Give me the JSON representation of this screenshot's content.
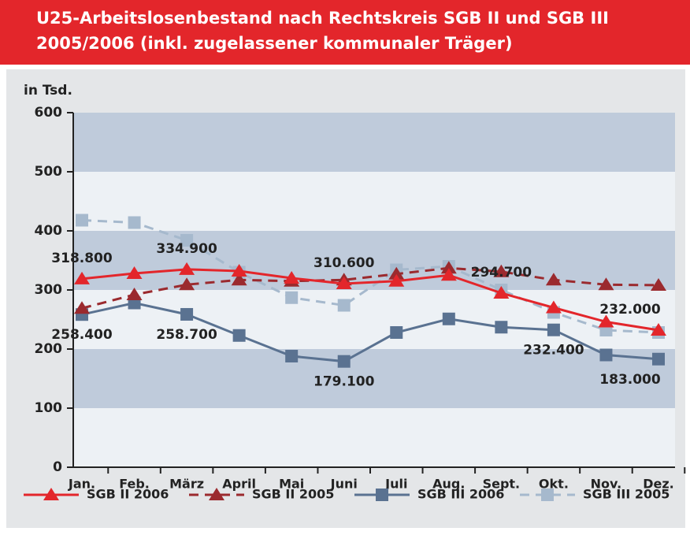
{
  "chart_data": {
    "type": "line",
    "title": "U25-Arbeitslosenbestand nach Rechtskreis SGB II und SGB III",
    "subtitle": "2005/2006 (inkl. zugelassener kommunaler Träger)",
    "y_label": "in Tsd.",
    "categories": [
      "Jan.",
      "Feb.",
      "März",
      "April",
      "Mai",
      "Juni",
      "Juli",
      "Aug.",
      "Sept.",
      "Okt.",
      "Nov.",
      "Dez."
    ],
    "series": [
      {
        "name": "SGB II 2006",
        "color": "#e3262b",
        "dashed": false,
        "marker": "triangle",
        "values": [
          318.8,
          328,
          334.9,
          332,
          320,
          310.6,
          315,
          325,
          294.7,
          270,
          246,
          232
        ],
        "value_labels": [
          "318.800",
          null,
          "334.900",
          null,
          null,
          "310.600",
          null,
          null,
          "294.700",
          null,
          null,
          "232.000"
        ]
      },
      {
        "name": "SGB II 2005",
        "color": "#9b2a2e",
        "dashed": true,
        "marker": "triangle",
        "values": [
          269,
          292,
          309,
          317,
          315,
          317,
          327,
          337,
          331,
          317,
          309,
          308
        ]
      },
      {
        "name": "SGB III 2006",
        "color": "#5a7291",
        "dashed": false,
        "marker": "square",
        "values": [
          258.4,
          278,
          258.7,
          223,
          188,
          179.1,
          228,
          251,
          237,
          232.4,
          190,
          183
        ],
        "value_labels": [
          "258.400",
          null,
          "258.700",
          null,
          null,
          "179.100",
          null,
          null,
          null,
          "232.400",
          null,
          "183.000"
        ]
      },
      {
        "name": "SGB III 2005",
        "color": "#a6b9cd",
        "dashed": true,
        "marker": "square",
        "values": [
          418,
          414,
          384,
          330,
          287,
          274,
          334,
          340,
          300,
          262,
          232,
          228
        ]
      }
    ],
    "ylim": [
      0,
      600
    ],
    "yticks": [
      0,
      100,
      200,
      300,
      400,
      500,
      600
    ],
    "grid": "bands"
  }
}
